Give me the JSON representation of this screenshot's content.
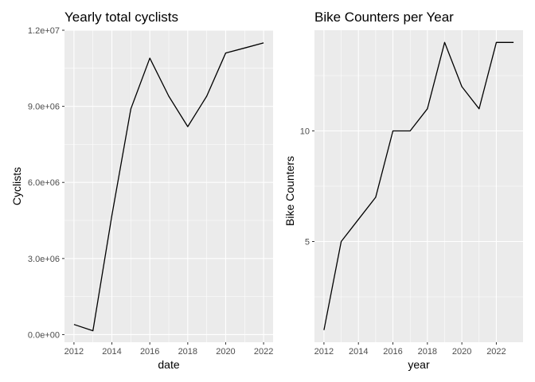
{
  "chart_data": [
    {
      "type": "line",
      "title": "Yearly total cyclists",
      "xlabel": "date",
      "ylabel": "Cyclists",
      "x": [
        2012,
        2013,
        2014,
        2015,
        2016,
        2017,
        2018,
        2019,
        2020,
        2021,
        2022
      ],
      "y": [
        400000,
        150000,
        4700000,
        8900000,
        10900000,
        9400000,
        8200000,
        9400000,
        11100000,
        11300000,
        11500000
      ],
      "xlim": [
        2011.5,
        2022.5
      ],
      "ylim": [
        -300000,
        12000000
      ],
      "x_ticks": [
        2012,
        2014,
        2016,
        2018,
        2020,
        2022
      ],
      "x_tick_labels": [
        "2012",
        "2014",
        "2016",
        "2018",
        "2020",
        "2022"
      ],
      "y_ticks": [
        0,
        3000000,
        6000000,
        9000000,
        12000000
      ],
      "y_tick_labels": [
        "0.0e+00",
        "3.0e+06",
        "6.0e+06",
        "9.0e+06",
        "1.2e+07"
      ],
      "grid": true,
      "background": "#ebebeb",
      "line_color": "#000000"
    },
    {
      "type": "line",
      "title": "Bike Counters per Year",
      "xlabel": "year",
      "ylabel": "Bike Counters",
      "x": [
        2012,
        2013,
        2014,
        2015,
        2016,
        2017,
        2018,
        2019,
        2020,
        2021,
        2022,
        2023
      ],
      "y": [
        1,
        5,
        6,
        7,
        10,
        10,
        11,
        14,
        12,
        11,
        14,
        14
      ],
      "xlim": [
        2011.45,
        2023.55
      ],
      "ylim": [
        0.45,
        14.55
      ],
      "x_ticks": [
        2012,
        2014,
        2016,
        2018,
        2020,
        2022
      ],
      "x_tick_labels": [
        "2012",
        "2014",
        "2016",
        "2018",
        "2020",
        "2022"
      ],
      "y_ticks": [
        5,
        10
      ],
      "y_tick_labels": [
        "5",
        "10"
      ],
      "grid": true,
      "background": "#ebebeb",
      "line_color": "#000000"
    }
  ]
}
